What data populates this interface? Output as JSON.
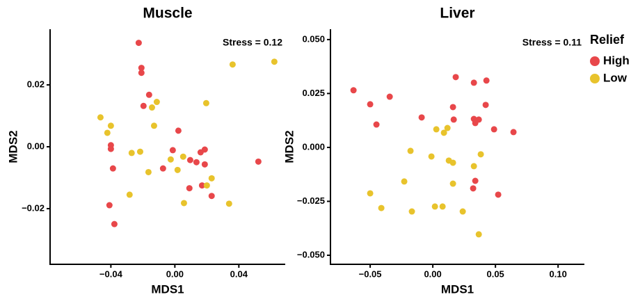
{
  "chart_data": [
    {
      "type": "scatter",
      "title": "Muscle",
      "annotation": "Stress = 0.12",
      "xlabel": "MDS1",
      "ylabel": "MDS2",
      "xlim": [
        -0.078,
        0.069
      ],
      "ylim": [
        -0.038,
        0.038
      ],
      "xticks": [
        {
          "value": -0.04,
          "label": "−0.04"
        },
        {
          "value": 0,
          "label": "0.00"
        },
        {
          "value": 0.04,
          "label": "0.04"
        }
      ],
      "yticks": [
        {
          "value": -0.02,
          "label": "−0.02"
        },
        {
          "value": 0,
          "label": "0.00"
        },
        {
          "value": 0.02,
          "label": "0.02"
        }
      ],
      "series": [
        {
          "color": "#e8474a",
          "x": [
            -0.0226,
            -0.0209,
            -0.0209,
            -0.0161,
            -0.0196,
            0.0022,
            -0.04,
            -0.04,
            -0.0387,
            -0.0013,
            -0.0074,
            0.0096,
            0.0135,
            0.0161,
            0.0187,
            0.0187,
            0.0091,
            0.017,
            0.023,
            0.0522,
            -0.0409,
            -0.0378
          ],
          "values": [
            0.0336,
            0.0255,
            0.0239,
            0.0168,
            0.0132,
            0.0052,
            0.0005,
            -0.0007,
            -0.007,
            -0.0011,
            -0.007,
            -0.0043,
            -0.005,
            -0.0018,
            -0.0009,
            -0.0057,
            -0.0134,
            -0.0125,
            -0.0159,
            -0.0048,
            -0.0189,
            -0.025
          ]
        },
        {
          "color": "#e8c32c",
          "x": [
            0.0361,
            0.0622,
            -0.0113,
            -0.0143,
            0.0196,
            -0.0465,
            -0.04,
            -0.0422,
            -0.013,
            -0.027,
            -0.0217,
            -0.0026,
            0.0052,
            0.0017,
            -0.0165,
            0.023,
            0.02,
            -0.0283,
            0.0057,
            0.0339
          ],
          "values": [
            0.0266,
            0.0275,
            0.0145,
            0.0127,
            0.0141,
            0.0095,
            0.0068,
            0.0045,
            0.0068,
            -0.002,
            -0.0016,
            -0.0041,
            -0.0032,
            -0.0075,
            -0.0082,
            -0.0102,
            -0.0125,
            -0.0155,
            -0.0182,
            -0.0184
          ]
        }
      ]
    },
    {
      "type": "scatter",
      "title": "Liver",
      "annotation": "Stress = 0.11",
      "xlabel": "MDS1",
      "ylabel": "MDS2",
      "xlim": [
        -0.0817,
        0.121
      ],
      "ylim": [
        -0.0542,
        0.0548
      ],
      "xticks": [
        {
          "value": -0.05,
          "label": "−0.05"
        },
        {
          "value": 0,
          "label": "0.00"
        },
        {
          "value": 0.05,
          "label": "0.05"
        },
        {
          "value": 0.1,
          "label": "0.10"
        }
      ],
      "yticks": [
        {
          "value": -0.05,
          "label": "−0.050"
        },
        {
          "value": -0.025,
          "label": "−0.025"
        },
        {
          "value": 0,
          "label": "0.000"
        },
        {
          "value": 0.025,
          "label": "0.025"
        },
        {
          "value": 0.05,
          "label": "0.050"
        }
      ],
      "legend_title": "Relief",
      "legend": "right",
      "series": [
        {
          "name": "High",
          "color": "#e8474a",
          "x": [
            -0.0633,
            -0.05,
            -0.045,
            -0.0344,
            -0.0089,
            0.0183,
            0.0161,
            0.0167,
            0.0328,
            0.0428,
            0.0422,
            0.0328,
            0.0367,
            0.0339,
            0.0489,
            0.0644,
            0.0339,
            0.0322,
            0.0522
          ],
          "values": [
            0.0265,
            0.02,
            0.0106,
            0.0235,
            0.0139,
            0.0326,
            0.0187,
            0.0129,
            0.03,
            0.031,
            0.0197,
            0.0132,
            0.0129,
            0.0113,
            0.0084,
            0.0071,
            -0.0155,
            -0.019,
            -0.0219
          ]
        },
        {
          "name": "Low",
          "color": "#e8c32c",
          "x": [
            0.0028,
            0.0117,
            0.0089,
            -0.0178,
            -0.0011,
            0.0128,
            0.0161,
            0.0383,
            0.0328,
            -0.0228,
            0.0161,
            -0.05,
            -0.0411,
            0.0017,
            0.0078,
            -0.0167,
            0.0239,
            0.0367
          ],
          "values": [
            0.0084,
            0.009,
            0.0068,
            -0.0016,
            -0.0042,
            -0.0061,
            -0.0071,
            -0.0032,
            -0.0087,
            -0.0158,
            -0.0168,
            -0.0213,
            -0.0281,
            -0.0274,
            -0.0274,
            -0.0297,
            -0.0297,
            -0.0403
          ]
        }
      ]
    }
  ]
}
